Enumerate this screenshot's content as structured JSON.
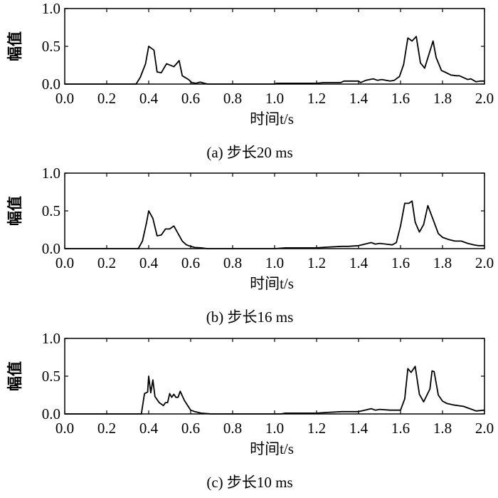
{
  "chart_data": [
    {
      "type": "line",
      "caption": "(a) 步长20 ms",
      "xlabel": "时间t/s",
      "ylabel": "幅值",
      "xlim": [
        0,
        2.0
      ],
      "ylim": [
        0,
        1.0
      ],
      "xticks": [
        "0.0",
        "0.2",
        "0.4",
        "0.6",
        "0.8",
        "1.0",
        "1.2",
        "1.4",
        "1.6",
        "1.8",
        "2.0"
      ],
      "yticks": [
        "0.0",
        "0.5",
        "1.0"
      ],
      "grid": false,
      "x": [
        0,
        0.34,
        0.36,
        0.385,
        0.4,
        0.425,
        0.44,
        0.46,
        0.485,
        0.52,
        0.545,
        0.56,
        0.59,
        0.605,
        0.625,
        0.645,
        0.68,
        1.0,
        1.01,
        1.2,
        1.235,
        1.315,
        1.33,
        1.4,
        1.41,
        1.435,
        1.47,
        1.49,
        1.51,
        1.55,
        1.57,
        1.595,
        1.615,
        1.635,
        1.655,
        1.675,
        1.695,
        1.715,
        1.755,
        1.77,
        1.795,
        1.81,
        1.84,
        1.865,
        1.88,
        1.92,
        1.935,
        1.96,
        1.98,
        2.0
      ],
      "y": [
        0,
        0,
        0.09,
        0.27,
        0.5,
        0.45,
        0.16,
        0.15,
        0.27,
        0.23,
        0.31,
        0.11,
        0.06,
        0.02,
        0.01,
        0.025,
        0,
        0,
        0.01,
        0.01,
        0.02,
        0.02,
        0.04,
        0.04,
        0.02,
        0.05,
        0.07,
        0.05,
        0.06,
        0.04,
        0.05,
        0.1,
        0.26,
        0.61,
        0.57,
        0.63,
        0.28,
        0.21,
        0.57,
        0.35,
        0.18,
        0.16,
        0.12,
        0.11,
        0.11,
        0.06,
        0.07,
        0.03,
        0.04,
        0.04
      ]
    },
    {
      "type": "line",
      "caption": "(b) 步长16 ms",
      "xlabel": "时间t/s",
      "ylabel": "幅值",
      "xlim": [
        0,
        2.0
      ],
      "ylim": [
        0,
        1.0
      ],
      "xticks": [
        "0.0",
        "0.2",
        "0.4",
        "0.6",
        "0.8",
        "1.0",
        "1.2",
        "1.4",
        "1.6",
        "1.8",
        "2.0"
      ],
      "yticks": [
        "0.0",
        "0.5",
        "1.0"
      ],
      "grid": false,
      "x": [
        0,
        0.35,
        0.37,
        0.39,
        0.4,
        0.42,
        0.44,
        0.46,
        0.48,
        0.5,
        0.52,
        0.54,
        0.56,
        0.58,
        0.6,
        0.62,
        0.65,
        0.68,
        1.0,
        1.05,
        1.2,
        1.25,
        1.32,
        1.35,
        1.4,
        1.43,
        1.46,
        1.48,
        1.5,
        1.53,
        1.56,
        1.58,
        1.6,
        1.62,
        1.64,
        1.655,
        1.67,
        1.69,
        1.71,
        1.73,
        1.76,
        1.78,
        1.8,
        1.83,
        1.86,
        1.89,
        1.92,
        1.95,
        1.97,
        2.0
      ],
      "y": [
        0,
        0,
        0.1,
        0.35,
        0.5,
        0.4,
        0.17,
        0.18,
        0.26,
        0.26,
        0.3,
        0.2,
        0.1,
        0.05,
        0.03,
        0.015,
        0.01,
        0,
        0,
        0.01,
        0.01,
        0.02,
        0.03,
        0.03,
        0.04,
        0.06,
        0.08,
        0.06,
        0.07,
        0.06,
        0.05,
        0.08,
        0.3,
        0.6,
        0.6,
        0.63,
        0.35,
        0.22,
        0.32,
        0.57,
        0.35,
        0.2,
        0.15,
        0.12,
        0.1,
        0.1,
        0.07,
        0.05,
        0.04,
        0.04
      ]
    },
    {
      "type": "line",
      "caption": "(c) 步长10 ms",
      "xlabel": "时间t/s",
      "ylabel": "幅值",
      "xlim": [
        0,
        2.0
      ],
      "ylim": [
        0,
        1.0
      ],
      "xticks": [
        "0.0",
        "0.2",
        "0.4",
        "0.6",
        "0.8",
        "1.0",
        "1.2",
        "1.4",
        "1.6",
        "1.8",
        "2.0"
      ],
      "yticks": [
        "0.0",
        "0.5",
        "1.0"
      ],
      "grid": false,
      "x": [
        0,
        0.365,
        0.38,
        0.395,
        0.4,
        0.41,
        0.42,
        0.43,
        0.45,
        0.47,
        0.48,
        0.49,
        0.5,
        0.51,
        0.52,
        0.53,
        0.54,
        0.55,
        0.57,
        0.6,
        0.62,
        0.65,
        0.7,
        1.03,
        1.05,
        1.2,
        1.25,
        1.32,
        1.4,
        1.43,
        1.46,
        1.48,
        1.5,
        1.55,
        1.58,
        1.6,
        1.62,
        1.635,
        1.65,
        1.67,
        1.69,
        1.71,
        1.74,
        1.75,
        1.76,
        1.78,
        1.8,
        1.82,
        1.85,
        1.9,
        1.93,
        1.96,
        2.0
      ],
      "y": [
        0,
        0,
        0.27,
        0.29,
        0.5,
        0.28,
        0.45,
        0.23,
        0.15,
        0.11,
        0.15,
        0.15,
        0.27,
        0.22,
        0.26,
        0.22,
        0.22,
        0.3,
        0.18,
        0.05,
        0.03,
        0.01,
        0,
        0,
        0.01,
        0.01,
        0.02,
        0.03,
        0.03,
        0.05,
        0.07,
        0.05,
        0.06,
        0.05,
        0.05,
        0.05,
        0.2,
        0.6,
        0.55,
        0.63,
        0.26,
        0.16,
        0.33,
        0.57,
        0.56,
        0.25,
        0.17,
        0.14,
        0.12,
        0.1,
        0.07,
        0.04,
        0.05
      ]
    }
  ]
}
